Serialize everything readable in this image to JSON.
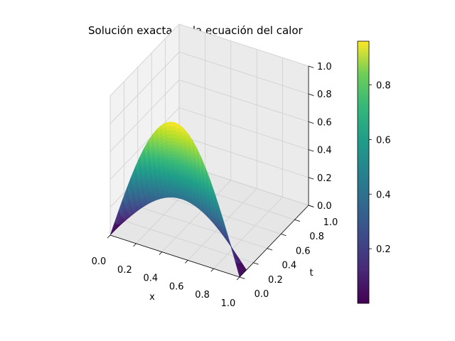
{
  "chart_data": {
    "type": "surface",
    "title": "Solución exacta de la ecuación del calor",
    "xlabel": "x",
    "ylabel": "t",
    "zlabel": "",
    "xlim": [
      0,
      1
    ],
    "ylim": [
      0,
      1
    ],
    "zlim": [
      0,
      1
    ],
    "x_ticks": [
      "0.0",
      "0.2",
      "0.4",
      "0.6",
      "0.8",
      "1.0"
    ],
    "y_ticks": [
      "0.0",
      "0.2",
      "0.4",
      "0.6",
      "0.8",
      "1.0"
    ],
    "z_ticks": [
      "0.0",
      "0.2",
      "0.4",
      "0.6",
      "0.8",
      "1.0"
    ],
    "surface": {
      "x_range": [
        0,
        1
      ],
      "t_range": [
        0,
        0.1
      ],
      "x_samples": 31,
      "t_samples": 31,
      "u_peak": 0.96,
      "u_min": 0.0
    },
    "colormap": "viridis",
    "colorbar": {
      "range": [
        0.0,
        0.96
      ],
      "ticks": [
        "0.2",
        "0.4",
        "0.6",
        "0.8"
      ]
    },
    "grid": true
  }
}
